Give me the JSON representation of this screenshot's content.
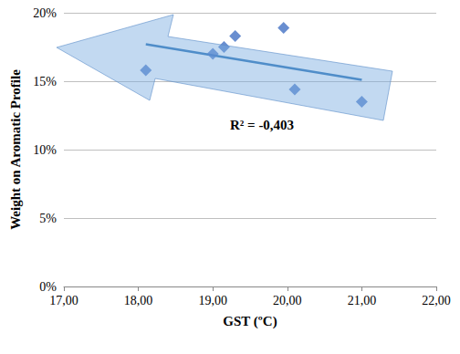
{
  "chart_data": {
    "type": "scatter",
    "x_label": "GST (ºC)",
    "y_label": "Weight on Aromatic Profile",
    "annotation": "R² = -0,403",
    "x": [
      18.1,
      19.0,
      19.15,
      19.3,
      19.95,
      20.1,
      21.0
    ],
    "values": [
      15.8,
      17.0,
      17.5,
      18.3,
      18.9,
      14.4,
      13.5
    ],
    "color": "#4472c4",
    "marker": "diamond",
    "trendline": {
      "x": [
        18.1,
        21.0
      ],
      "values": [
        17.7,
        15.1
      ],
      "color": "#2e75b6"
    },
    "xlim": [
      17,
      22
    ],
    "xticks": [
      {
        "value": 17,
        "label": "17,00"
      },
      {
        "value": 18,
        "label": "18,00"
      },
      {
        "value": 19,
        "label": "19,00"
      },
      {
        "value": 20,
        "label": "20,00"
      },
      {
        "value": 21,
        "label": "21,00"
      },
      {
        "value": 22,
        "label": "22,00"
      }
    ],
    "ylim": [
      0,
      20
    ],
    "yticks": [
      {
        "value": 0,
        "label": "0%"
      },
      {
        "value": 5,
        "label": "5%"
      },
      {
        "value": 10,
        "label": "10%"
      },
      {
        "value": 15,
        "label": "15%"
      },
      {
        "value": 20,
        "label": "20%"
      }
    ],
    "grid": true
  }
}
